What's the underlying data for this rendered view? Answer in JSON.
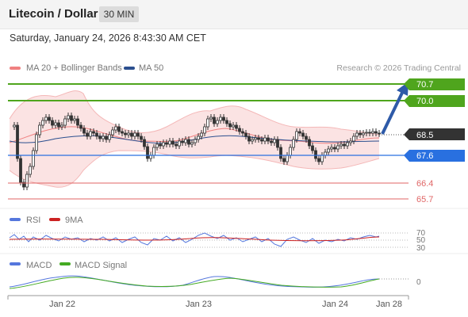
{
  "header": {
    "title": "Litecoin / Dollar",
    "timeframe": "30 MIN"
  },
  "datetime": "Saturday, January 24, 2026 8:43:30 AM CET",
  "legend": {
    "bollinger": "MA 20 + Bollinger Bands",
    "ma50": "MA 50",
    "credit": "Research © 2026 Trading Central",
    "colors": {
      "bollinger": "#f08080",
      "ma50": "#2b4f8f"
    }
  },
  "levels": {
    "resistance_2": "70.7",
    "resistance_1": "70.0",
    "last_price": "68.5",
    "pivot": "67.6",
    "support_1": "66.4",
    "support_2": "65.7"
  },
  "rsi_panel": {
    "rsi_label": "RSI",
    "ma_label": "9MA",
    "ticks": [
      "70",
      "50",
      "30"
    ],
    "colors": {
      "rsi": "#5577dd",
      "ma": "#cc2222"
    }
  },
  "macd_panel": {
    "macd_label": "MACD",
    "signal_label": "MACD Signal",
    "zero_tick": "0",
    "colors": {
      "macd": "#5577dd",
      "signal": "#44aa22"
    }
  },
  "x_axis": [
    "Jan 22",
    "Jan 23",
    "Jan 24",
    "Jan 28"
  ],
  "colors": {
    "resistance": "#4fa51d",
    "pivot": "#2970e0",
    "support": "#e06666",
    "arrow": "#2e5aa8",
    "last_price_bg": "#333333"
  }
}
